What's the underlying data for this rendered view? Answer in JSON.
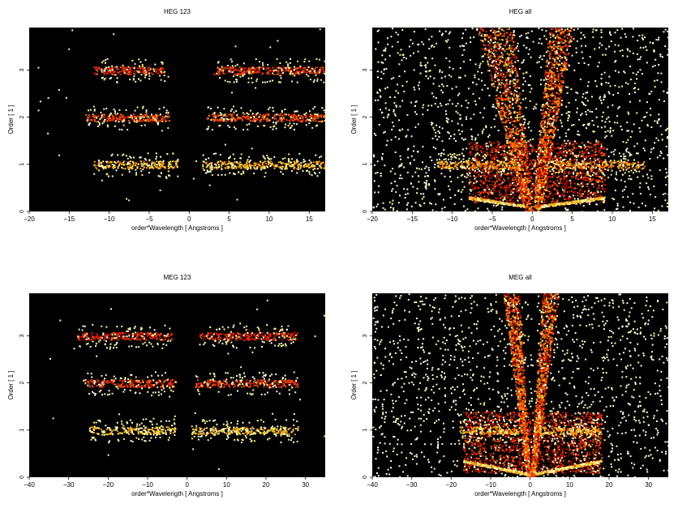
{
  "chart_data": [
    {
      "type": "heatmap",
      "title": "HEG 123",
      "xlabel": "order*Wavelength [ Angstroms ]",
      "ylabel": "Order [ 1 ]",
      "xlim": [
        -20,
        17
      ],
      "ylim": [
        0,
        3.9
      ],
      "xticks": [
        -20,
        -15,
        -10,
        -5,
        0,
        5,
        10,
        15
      ],
      "yticks": [
        0,
        1,
        2,
        3
      ],
      "colormap": "heat",
      "background": "#000000",
      "bands": [
        {
          "order": 1,
          "x_ranges": [
            [
              -12,
              -1.5
            ],
            [
              1.5,
              17
            ]
          ],
          "intensity": 0.9
        },
        {
          "order": 2,
          "x_ranges": [
            [
              -13,
              -2.5
            ],
            [
              2,
              17
            ]
          ],
          "intensity": 0.6
        },
        {
          "order": 3,
          "x_ranges": [
            [
              -12,
              -3
            ],
            [
              3,
              17
            ]
          ],
          "intensity": 0.55
        }
      ]
    },
    {
      "type": "heatmap",
      "title": "HEG all",
      "xlabel": "order*Wavelength [ Angstroms ]",
      "ylabel": "Order [ 1 ]",
      "xlim": [
        -20,
        17
      ],
      "ylim": [
        0,
        3.9
      ],
      "xticks": [
        -20,
        -15,
        -10,
        -5,
        0,
        5,
        10,
        15
      ],
      "yticks": [
        0,
        1,
        2,
        3
      ],
      "colormap": "heat",
      "background": "#000000",
      "bands": [
        {
          "order": 1,
          "x_ranges": [
            [
              -12,
              -1.5
            ],
            [
              1.5,
              14
            ]
          ],
          "intensity": 0.8
        }
      ],
      "boxes": [
        [
          -8,
          9,
          0.2,
          1.5
        ]
      ],
      "wedges": [
        {
          "x_at_top": [
            -7,
            -2.5
          ],
          "x_at_bottom": [
            -1,
            0
          ]
        },
        {
          "x_at_top": [
            2,
            5
          ],
          "x_at_bottom": [
            0,
            1
          ]
        }
      ],
      "arcs": [
        {
          "x": [
            -8,
            -1
          ],
          "y_start": 0.12,
          "y_end": 0.3
        },
        {
          "x": [
            1,
            9
          ],
          "y_start": 0.12,
          "y_end": 0.3
        }
      ]
    },
    {
      "type": "heatmap",
      "title": "MEG 123",
      "xlabel": "order*Wavelength [ Angstroms ]",
      "ylabel": "Order [ 1 ]",
      "xlim": [
        -40,
        35
      ],
      "ylim": [
        0,
        3.9
      ],
      "xticks": [
        -40,
        -30,
        -20,
        -10,
        0,
        10,
        20,
        30
      ],
      "yticks": [
        0,
        1,
        2,
        3
      ],
      "colormap": "heat",
      "background": "#000000",
      "bands": [
        {
          "order": 1,
          "x_ranges": [
            [
              -25,
              -3
            ],
            [
              1,
              28
            ]
          ],
          "intensity": 0.95
        },
        {
          "order": 2,
          "x_ranges": [
            [
              -26,
              -3
            ],
            [
              2,
              28
            ]
          ],
          "intensity": 0.55
        },
        {
          "order": 3,
          "x_ranges": [
            [
              -28,
              -4
            ],
            [
              3,
              28
            ]
          ],
          "intensity": 0.5
        }
      ]
    },
    {
      "type": "heatmap",
      "title": "MEG all",
      "xlabel": "order*Wavelength [ Angstroms ]",
      "ylabel": "Order [ 1 ]",
      "xlim": [
        -40,
        35
      ],
      "ylim": [
        0,
        3.9
      ],
      "xticks": [
        -40,
        -30,
        -20,
        -10,
        0,
        10,
        20,
        30
      ],
      "yticks": [
        0,
        1,
        2,
        3
      ],
      "colormap": "heat",
      "background": "#000000",
      "bands": [
        {
          "order": 1,
          "x_ranges": [
            [
              -18,
              -3
            ],
            [
              2,
              18
            ]
          ],
          "intensity": 0.85
        }
      ],
      "boxes": [
        [
          -17,
          18,
          0.1,
          1.4
        ]
      ],
      "wedges": [
        {
          "x_at_top": [
            -7,
            -3
          ],
          "x_at_bottom": [
            -1,
            0
          ]
        },
        {
          "x_at_top": [
            3,
            7
          ],
          "x_at_bottom": [
            0,
            1
          ]
        }
      ],
      "arcs": [
        {
          "x": [
            -17,
            -1
          ],
          "y_start": 0.08,
          "y_end": 0.35
        },
        {
          "x": [
            1,
            18
          ],
          "y_start": 0.08,
          "y_end": 0.35
        }
      ]
    }
  ]
}
